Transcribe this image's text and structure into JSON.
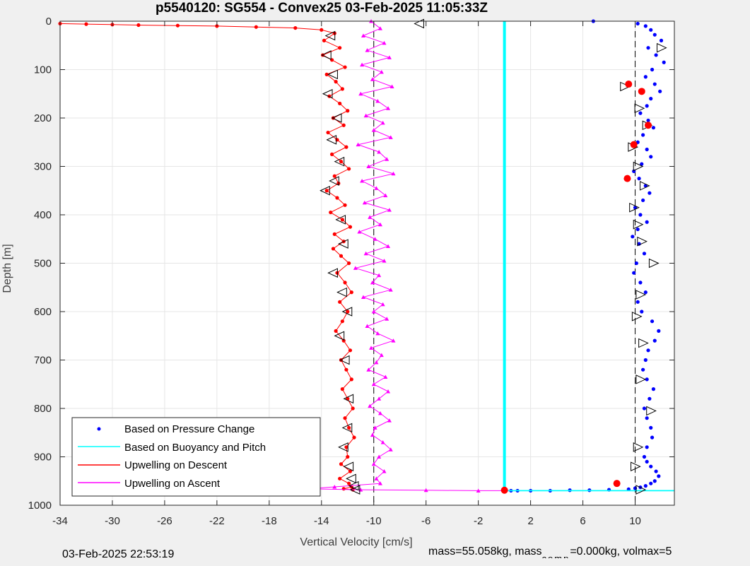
{
  "chart_data": {
    "type": "scatter",
    "title": "p5540120: SG554 - Convex25 03-Feb-2025 11:05:33Z",
    "xlabel": "Vertical Velocity [cm/s]",
    "ylabel": "Depth [m]",
    "xlim": [
      -34,
      13
    ],
    "ylim": [
      0,
      1000
    ],
    "y_reversed": true,
    "grid": true,
    "x_ticks": [
      -34,
      -30,
      -26,
      -22,
      -18,
      -14,
      -10,
      -6,
      -2,
      2,
      6,
      10
    ],
    "y_ticks": [
      0,
      100,
      200,
      300,
      400,
      500,
      600,
      700,
      800,
      900,
      1000
    ],
    "x_tick_labels": [
      "-34",
      "-30",
      "-26",
      "-22",
      "-18",
      "-14",
      "-10",
      "-6",
      "-2",
      "2",
      "6",
      "10"
    ],
    "y_tick_labels": [
      "0",
      "100",
      "200",
      "300",
      "400",
      "500",
      "600",
      "700",
      "800",
      "900",
      "1000"
    ],
    "legend_position": "bottom-left",
    "colors": {
      "pressure": "#0000ff",
      "buoyancy": "#00ffff",
      "descent": "#ff0000",
      "ascent": "#ff00ff",
      "dashed": "#000000",
      "markers": "#ff0000"
    },
    "reference_lines": {
      "dashed_x": [
        -10,
        10
      ],
      "buoyancy_x": 0,
      "bottom_depth": 970
    },
    "series": [
      {
        "name": "Based on Pressure Change",
        "style": "dots",
        "color": "#0000ff",
        "x": [
          6.8,
          10.2,
          10.8,
          11.2,
          11.5,
          12.0,
          11.0,
          11.6,
          12.2,
          11.3,
          10.8,
          11.5,
          11.9,
          11.2,
          10.9,
          10.4,
          11.0,
          11.4,
          10.6,
          10.2,
          10.9,
          11.2,
          10.5,
          9.9,
          10.3,
          10.8,
          11.1,
          10.6,
          10.0,
          10.4,
          10.9,
          10.2,
          9.8,
          10.3,
          10.7,
          10.1,
          9.9,
          10.4,
          10.8,
          10.2,
          10.5,
          11.3,
          11.8,
          11.5,
          11.0,
          10.8,
          10.6,
          10.9,
          11.4,
          11.1,
          10.7,
          10.9,
          11.2,
          11.3,
          10.9,
          10.7,
          10.9,
          11.2,
          11.6,
          11.8,
          11.5,
          11.2,
          10.8,
          10.4,
          10.0,
          9.5,
          8.0,
          6.5,
          5.0,
          3.5,
          2.0,
          1.0,
          0.5
        ],
        "y": [
          0,
          5,
          10,
          18,
          28,
          40,
          55,
          70,
          85,
          100,
          115,
          130,
          145,
          160,
          175,
          190,
          205,
          220,
          235,
          250,
          265,
          280,
          295,
          310,
          325,
          340,
          355,
          370,
          385,
          400,
          415,
          430,
          445,
          460,
          480,
          500,
          520,
          540,
          560,
          580,
          600,
          620,
          640,
          660,
          680,
          700,
          720,
          740,
          760,
          780,
          800,
          820,
          840,
          860,
          880,
          900,
          910,
          920,
          930,
          940,
          950,
          955,
          960,
          963,
          965,
          967,
          968,
          969,
          969,
          970,
          970,
          970,
          970
        ]
      },
      {
        "name": "Based on Buoyancy and Pitch",
        "style": "line",
        "color": "#00ffff",
        "x": [
          0,
          0,
          13
        ],
        "y": [
          0,
          970,
          970
        ]
      },
      {
        "name": "Upwelling on Descent",
        "style": "line-dots",
        "color": "#ff0000",
        "x": [
          -34,
          -32,
          -30,
          -28,
          -25,
          -22,
          -19,
          -16,
          -14,
          -13.0,
          -13.8,
          -12.6,
          -13.9,
          -13.2,
          -12.2,
          -13.6,
          -12.9,
          -12.4,
          -13.4,
          -12.6,
          -12.0,
          -13.1,
          -12.3,
          -13.5,
          -12.8,
          -12.1,
          -13.2,
          -12.5,
          -11.9,
          -13.0,
          -12.7,
          -13.6,
          -12.8,
          -12.2,
          -13.3,
          -12.4,
          -11.8,
          -13.0,
          -12.3,
          -13.1,
          -12.5,
          -11.9,
          -12.8,
          -12.2,
          -11.7,
          -12.6,
          -12.0,
          -12.4,
          -12.9,
          -12.3,
          -11.8,
          -12.5,
          -12.1,
          -11.7,
          -12.4,
          -12.0,
          -11.6,
          -12.2,
          -11.9,
          -11.5,
          -12.1,
          -12.0,
          -12.5,
          -11.8,
          -12.6,
          -11.9,
          -11.7,
          -12.3,
          -11.6
        ],
        "y": [
          5,
          6,
          7,
          8,
          9,
          10,
          12,
          14,
          18,
          25,
          40,
          55,
          70,
          80,
          95,
          110,
          125,
          140,
          155,
          170,
          185,
          200,
          215,
          230,
          245,
          260,
          275,
          290,
          305,
          320,
          335,
          350,
          365,
          380,
          395,
          410,
          425,
          440,
          455,
          470,
          485,
          500,
          520,
          540,
          560,
          580,
          600,
          620,
          640,
          660,
          680,
          700,
          720,
          740,
          760,
          780,
          800,
          820,
          840,
          860,
          880,
          900,
          915,
          930,
          945,
          955,
          962,
          966,
          968
        ]
      },
      {
        "name": "Upwelling on Ascent",
        "style": "line-triangles",
        "color": "#ff00ff",
        "x": [
          -10.2,
          -9.5,
          -10.8,
          -9.2,
          -10.5,
          -8.8,
          -10.9,
          -9.4,
          -10.1,
          -8.6,
          -11.0,
          -9.7,
          -8.9,
          -10.6,
          -9.3,
          -10.0,
          -8.7,
          -11.2,
          -9.6,
          -9.0,
          -10.4,
          -8.5,
          -10.9,
          -9.8,
          -9.1,
          -10.7,
          -8.8,
          -10.3,
          -9.5,
          -11.1,
          -9.9,
          -8.9,
          -10.6,
          -9.2,
          -11.4,
          -9.6,
          -10.1,
          -8.7,
          -10.8,
          -9.3,
          -10.0,
          -9.0,
          -10.5,
          -9.7,
          -8.5,
          -10.2,
          -9.4,
          -9.8,
          -10.4,
          -9.1,
          -10.0,
          -8.9,
          -9.6,
          -10.3,
          -9.5,
          -8.8,
          -9.9,
          -10.1,
          -9.3,
          -8.7,
          -9.6,
          -10.0,
          -9.2,
          -9.8,
          -9.5,
          -13.0,
          -15.0,
          -11.0,
          -6.0,
          -2.0,
          0.0
        ],
        "y": [
          0,
          15,
          30,
          45,
          60,
          75,
          90,
          105,
          120,
          135,
          150,
          165,
          180,
          195,
          210,
          225,
          240,
          255,
          270,
          285,
          300,
          315,
          330,
          345,
          360,
          375,
          390,
          405,
          420,
          435,
          450,
          465,
          480,
          495,
          510,
          525,
          540,
          555,
          570,
          585,
          600,
          615,
          630,
          645,
          660,
          675,
          690,
          705,
          720,
          735,
          750,
          765,
          780,
          795,
          810,
          825,
          840,
          855,
          870,
          885,
          900,
          915,
          930,
          945,
          955,
          962,
          966,
          968,
          969,
          970,
          970
        ]
      }
    ],
    "marker_triangles": {
      "descent_x": [
        -6.5,
        -13.3,
        -13.6,
        -13.1,
        -13.5,
        -12.8,
        -13.2,
        -12.6,
        -13.0,
        -13.7,
        -12.5,
        -12.3,
        -13.1,
        -12.4,
        -12.0,
        -12.6,
        -12.2,
        -11.9,
        -12.0,
        -12.3,
        -11.9,
        -11.7,
        -11.5,
        -11.4
      ],
      "descent_y": [
        5,
        30,
        70,
        110,
        150,
        200,
        245,
        290,
        330,
        350,
        410,
        460,
        520,
        560,
        600,
        650,
        700,
        780,
        840,
        880,
        920,
        945,
        960,
        968
      ],
      "ascent_x": [
        12.0,
        9.2,
        10.3,
        10.9,
        9.8,
        10.2,
        10.7,
        9.9,
        10.2,
        10.5,
        11.4,
        10.4,
        10.1,
        10.6,
        10.4,
        11.2,
        10.2,
        10.0,
        10.4
      ],
      "ascent_y": [
        55,
        135,
        180,
        215,
        260,
        300,
        340,
        385,
        420,
        455,
        500,
        565,
        610,
        665,
        740,
        805,
        880,
        920,
        968
      ]
    },
    "red_markers": {
      "x": [
        9.5,
        10.5,
        11.0,
        9.9,
        9.4,
        8.6,
        0.0
      ],
      "y": [
        130,
        145,
        215,
        255,
        325,
        955,
        969
      ]
    }
  },
  "legend": {
    "items": [
      {
        "label": "Based on Pressure Change"
      },
      {
        "label": "Based on Buoyancy and Pitch"
      },
      {
        "label": "Upwelling on Descent"
      },
      {
        "label": "Upwelling on Ascent"
      }
    ]
  },
  "footer": {
    "timestamp": "03-Feb-2025 22:53:19",
    "mass_text": "mass=55.058kg, mass",
    "mass_comp_sub": "comp",
    "mass_comp_text": "=0.000kg, volmax=5"
  }
}
